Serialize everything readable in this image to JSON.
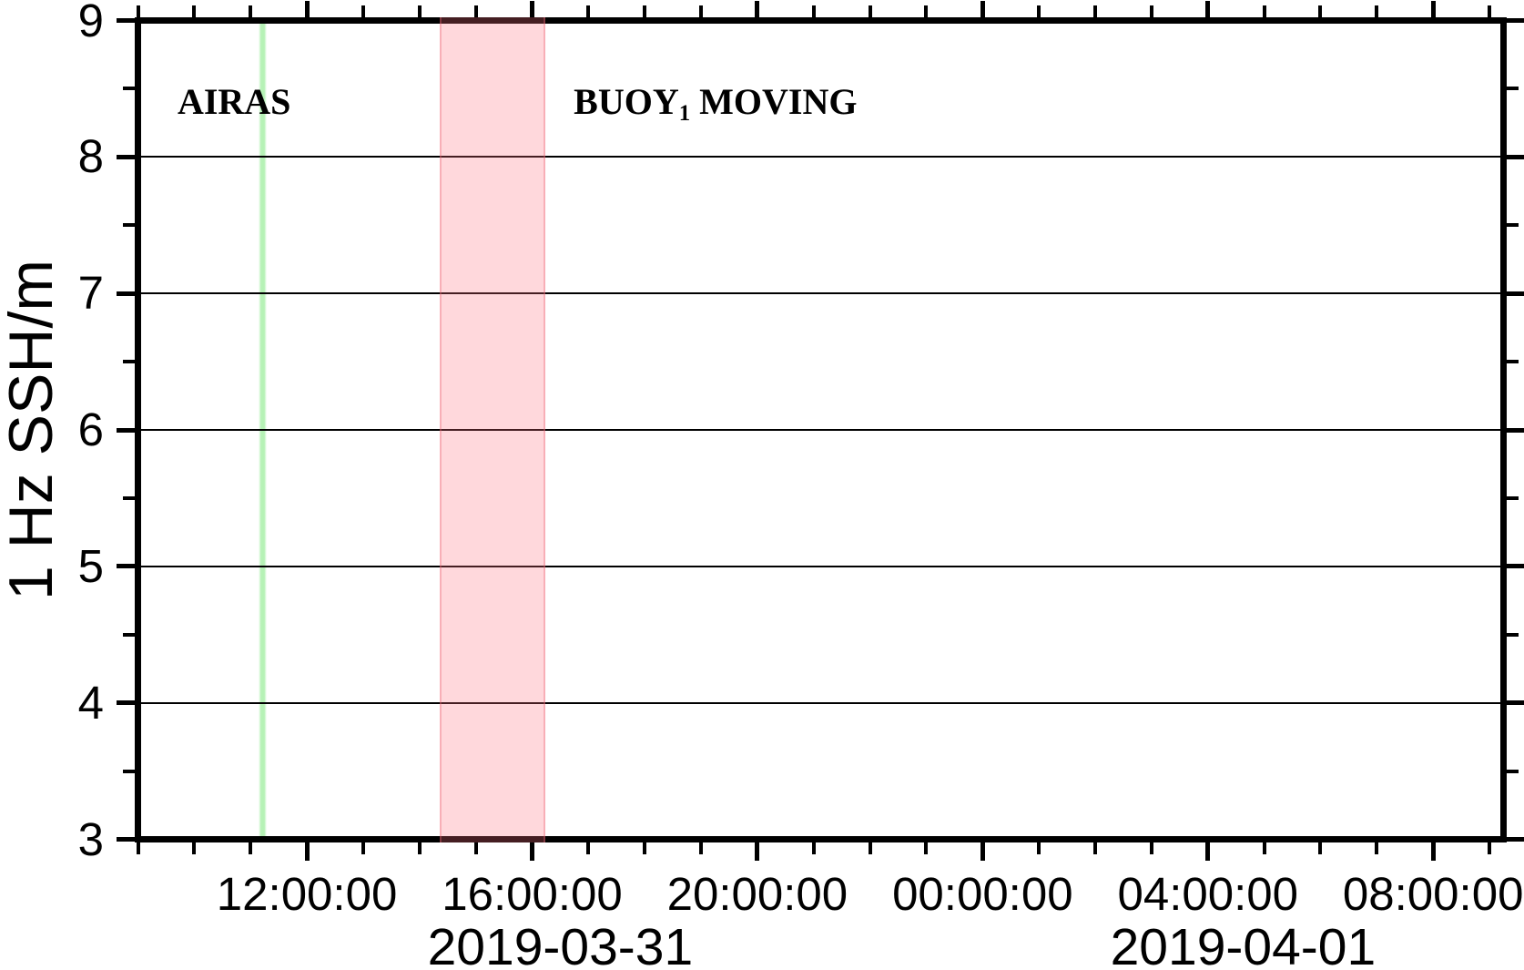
{
  "figure": {
    "background_color": "#ffffff",
    "frame_color": "#000000",
    "gridline_color": "#000000",
    "event_line_color_green": "#8fe98f",
    "event_band_color_pink": "#ffe0e4",
    "event_band_edge_color": "#f6c4cb"
  },
  "chart_data": {
    "type": "line",
    "title": "",
    "xlabel": "",
    "ylabel": "1 Hz SSH/m",
    "ylim": [
      3,
      9
    ],
    "yticks": [
      9,
      8,
      7,
      6,
      5,
      4,
      3
    ],
    "y_minor_tick_step": 0.5,
    "grid": "horizontal major gridlines only, plot area empty (no data series drawn)",
    "legend": "none",
    "x_type": "time",
    "x_range_start": "2019-03-31 09:00:00",
    "x_range_end": "2019-04-01 09:15:00",
    "x_total_minutes": 1455,
    "x_minor_tick_step_minutes": 60,
    "x_major_ticks": [
      {
        "minutes": 180,
        "label": "12:00:00"
      },
      {
        "minutes": 420,
        "label": "16:00:00"
      },
      {
        "minutes": 660,
        "label": "20:00:00"
      },
      {
        "minutes": 900,
        "label": "00:00:00"
      },
      {
        "minutes": 1140,
        "label": "04:00:00"
      },
      {
        "minutes": 1380,
        "label": "08:00:00"
      }
    ],
    "day_labels": [
      {
        "center_minutes": 450,
        "label": "2019-03-31"
      },
      {
        "center_minutes": 1177.5,
        "label": "2019-04-01"
      }
    ],
    "series": [],
    "events": [
      {
        "kind": "vline",
        "approx_time": "2019-03-31 11:13",
        "minutes": 133,
        "color": "#8fe98f"
      },
      {
        "kind": "band",
        "approx_start": "2019-03-31 14:22",
        "approx_end": "2019-03-31 16:14",
        "start_minutes": 322,
        "end_minutes": 434,
        "color": "#ffe0e4"
      }
    ],
    "annotations": {
      "airas": {
        "text": "AIRAS",
        "anchor_minutes": 5.5,
        "y_value": 8.77
      },
      "buoy": {
        "pre": "BUOY",
        "sub": "1",
        "post": " MOVING",
        "anchor_minutes": 425.5,
        "y_value": 8.77
      }
    }
  }
}
